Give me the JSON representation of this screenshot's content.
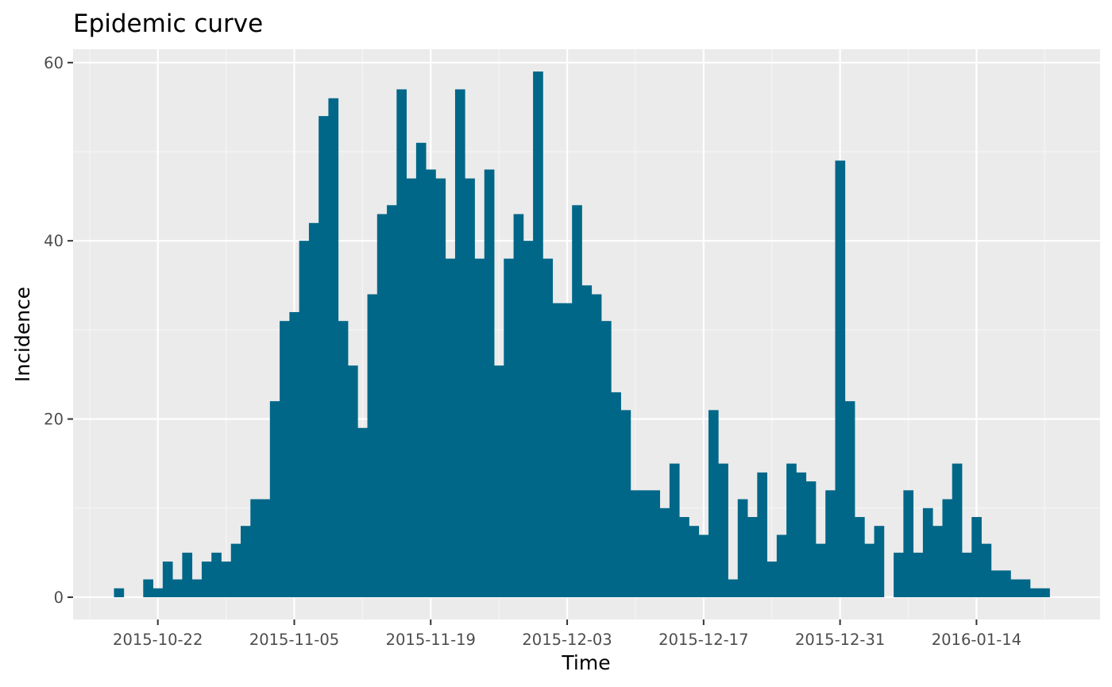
{
  "chart_data": {
    "type": "bar",
    "title": "Epidemic curve",
    "xlabel": "Time",
    "ylabel": "Incidence",
    "x_start_date": "2015-10-18",
    "x_tick_labels": [
      "2015-10-22",
      "2015-11-05",
      "2015-11-19",
      "2015-12-03",
      "2015-12-17",
      "2015-12-31",
      "2016-01-14"
    ],
    "y_ticks": [
      0,
      20,
      40,
      60
    ],
    "ylim": [
      -2.5,
      61.5
    ],
    "grid": true,
    "legend": "none",
    "series": [
      {
        "dates": [
          "2015-10-18",
          "2015-10-19",
          "2015-10-20",
          "2015-10-21",
          "2015-10-22",
          "2015-10-23",
          "2015-10-24",
          "2015-10-25",
          "2015-10-26",
          "2015-10-27",
          "2015-10-28",
          "2015-10-29",
          "2015-10-30",
          "2015-10-31",
          "2015-11-01",
          "2015-11-02",
          "2015-11-03",
          "2015-11-04",
          "2015-11-05",
          "2015-11-06",
          "2015-11-07",
          "2015-11-08",
          "2015-11-09",
          "2015-11-10",
          "2015-11-11",
          "2015-11-12",
          "2015-11-13",
          "2015-11-14",
          "2015-11-15",
          "2015-11-16",
          "2015-11-17",
          "2015-11-18",
          "2015-11-19",
          "2015-11-20",
          "2015-11-21",
          "2015-11-22",
          "2015-11-23",
          "2015-11-24",
          "2015-11-25",
          "2015-11-26",
          "2015-11-27",
          "2015-11-28",
          "2015-11-29",
          "2015-11-30",
          "2015-12-01",
          "2015-12-02",
          "2015-12-03",
          "2015-12-04",
          "2015-12-05",
          "2015-12-06",
          "2015-12-07",
          "2015-12-08",
          "2015-12-09",
          "2015-12-10",
          "2015-12-11",
          "2015-12-12",
          "2015-12-13",
          "2015-12-14",
          "2015-12-15",
          "2015-12-16",
          "2015-12-17",
          "2015-12-18",
          "2015-12-19",
          "2015-12-20",
          "2015-12-21",
          "2015-12-22",
          "2015-12-23",
          "2015-12-24",
          "2015-12-25",
          "2015-12-26",
          "2015-12-27",
          "2015-12-28",
          "2015-12-29",
          "2015-12-30",
          "2015-12-31",
          "2016-01-01",
          "2016-01-02",
          "2016-01-03",
          "2016-01-04",
          "2016-01-05",
          "2016-01-06",
          "2016-01-07",
          "2016-01-08",
          "2016-01-09",
          "2016-01-10",
          "2016-01-11",
          "2016-01-12",
          "2016-01-13",
          "2016-01-14",
          "2016-01-15",
          "2016-01-16",
          "2016-01-17",
          "2016-01-18",
          "2016-01-19",
          "2016-01-20",
          "2016-01-21",
          "2016-01-22",
          "2016-01-23"
        ],
        "values": [
          1,
          0,
          0,
          2,
          1,
          4,
          2,
          5,
          2,
          4,
          5,
          4,
          6,
          8,
          11,
          11,
          22,
          31,
          32,
          40,
          42,
          54,
          56,
          31,
          26,
          19,
          34,
          43,
          44,
          57,
          47,
          51,
          48,
          47,
          38,
          57,
          47,
          38,
          48,
          26,
          38,
          43,
          40,
          59,
          38,
          33,
          33,
          44,
          35,
          34,
          31,
          23,
          21,
          12,
          12,
          12,
          10,
          15,
          9,
          8,
          7,
          21,
          15,
          2,
          11,
          9,
          14,
          4,
          7,
          15,
          14,
          13,
          6,
          12,
          49,
          22,
          9,
          6,
          8,
          0,
          5,
          12,
          5,
          10,
          8,
          11,
          15,
          5,
          9,
          6,
          3,
          3,
          2,
          2,
          1,
          1,
          0,
          0
        ]
      }
    ],
    "colors": {
      "bar": "#006788",
      "panel": "#ebebeb",
      "grid_major": "#ffffff",
      "grid_minor": "#f5f5f5"
    }
  }
}
